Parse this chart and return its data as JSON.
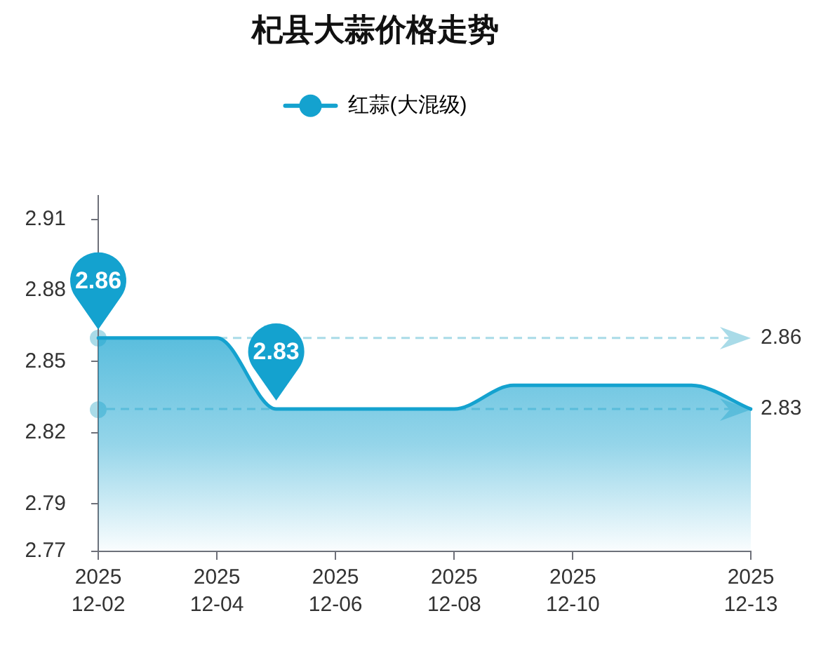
{
  "chart_data": {
    "type": "area",
    "title": "杞县大蒜价格走势",
    "categories": [
      "2025\n12-02",
      null,
      "2025\n12-04",
      null,
      "2025\n12-06",
      null,
      "2025\n12-08",
      null,
      "2025\n12-10",
      null,
      null,
      "2025\n12-13"
    ],
    "series": [
      {
        "name": "红蒜(大混级)",
        "color": "#14a2cf",
        "values": [
          2.86,
          2.86,
          2.86,
          2.83,
          2.83,
          2.83,
          2.83,
          2.84,
          2.84,
          2.84,
          2.84,
          2.83
        ]
      }
    ],
    "ylim": [
      2.77,
      2.92
    ],
    "yticks": [
      2.77,
      2.79,
      2.82,
      2.85,
      2.88,
      2.91
    ],
    "legend": "top",
    "marker": "none",
    "annotations": [
      {
        "text": "2.86",
        "x": "2025\n12-02",
        "y": 2.86
      },
      {
        "text": "2.83",
        "y": 2.83
      }
    ],
    "ref_lines": [
      {
        "axis": "y",
        "value": 2.86,
        "label": "2.86",
        "color": "#a9dbe8",
        "line_style": "dashed"
      },
      {
        "axis": "y",
        "value": 2.83,
        "label": "2.83",
        "color": "#a9dbe8",
        "line_style": "dashed"
      }
    ]
  }
}
